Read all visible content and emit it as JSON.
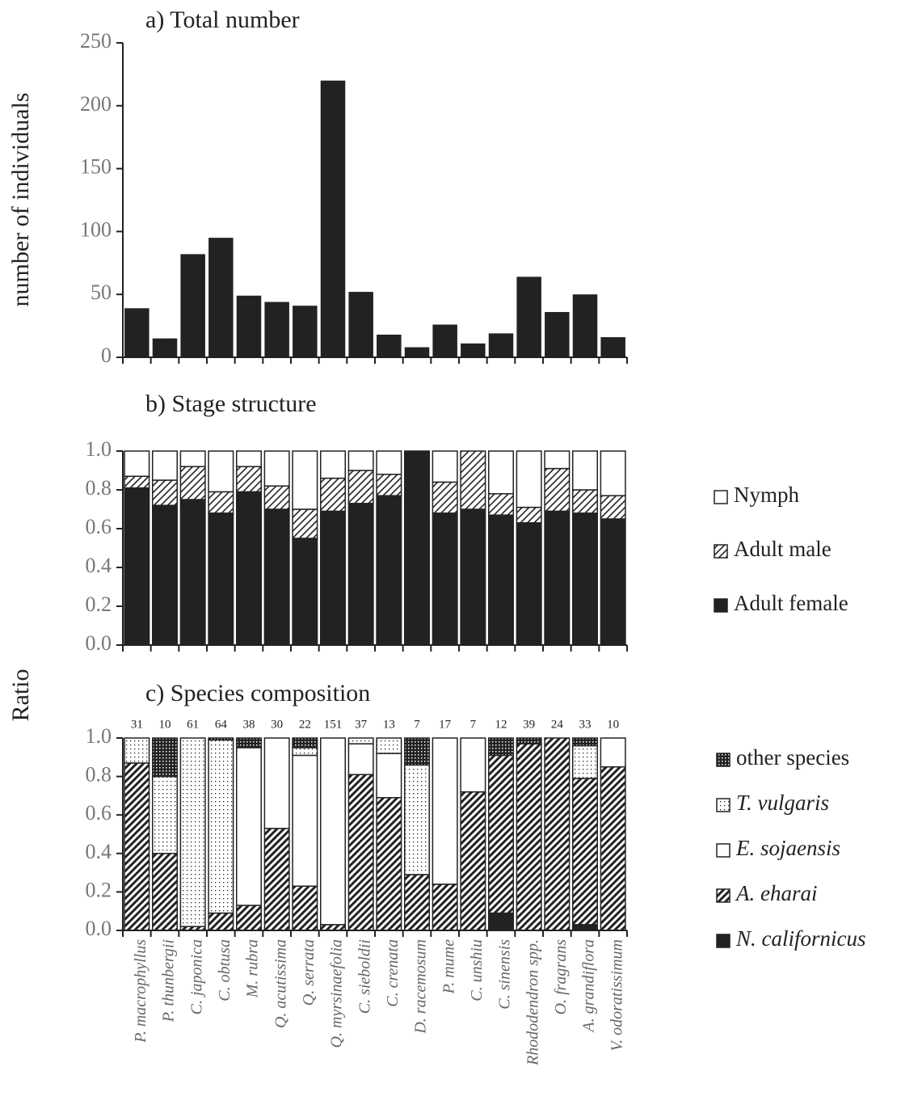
{
  "chart_data": [
    {
      "type": "bar",
      "title": "a) Total number",
      "ylabel": "number of individuals",
      "color": "#222222",
      "values": [
        39,
        15,
        82,
        95,
        49,
        44,
        41,
        220,
        52,
        18,
        8,
        26,
        11,
        19,
        64,
        36,
        50,
        16
      ],
      "ylim": [
        0,
        250
      ],
      "yticks": [
        0,
        50,
        100,
        150,
        200,
        250
      ]
    },
    {
      "type": "stacked_bar",
      "title": "b) Stage structure",
      "legend": "right",
      "series": [
        {
          "name": "Adult female",
          "color": "#222222",
          "pattern": "solid",
          "values": [
            0.81,
            0.72,
            0.75,
            0.68,
            0.79,
            0.7,
            0.55,
            0.69,
            0.73,
            0.77,
            1.0,
            0.68,
            0.7,
            0.67,
            0.63,
            0.69,
            0.68,
            0.65
          ]
        },
        {
          "name": "Adult male",
          "color": "#222222",
          "pattern": "hatch",
          "values": [
            0.06,
            0.13,
            0.17,
            0.11,
            0.13,
            0.12,
            0.15,
            0.17,
            0.17,
            0.11,
            0,
            0.16,
            0.3,
            0.11,
            0.08,
            0.22,
            0.12,
            0.12
          ]
        },
        {
          "name": "Nymph",
          "color": "#ffffff",
          "pattern": "none",
          "values": [
            0.13,
            0.15,
            0.08,
            0.21,
            0.08,
            0.18,
            0.3,
            0.14,
            0.1,
            0.12,
            0,
            0.16,
            0,
            0.22,
            0.29,
            0.09,
            0.2,
            0.23
          ]
        }
      ],
      "ylim": [
        0,
        1
      ],
      "yticks": [
        {
          "value": 0,
          "label": "0.0"
        },
        0.2,
        0.4,
        0.6,
        0.8,
        {
          "value": 1,
          "label": "1.0"
        }
      ]
    },
    {
      "type": "stacked_bar",
      "title": "c) Species composition",
      "ylabel": "Ratio",
      "legend": "right",
      "categories": [
        "P. macrophyllus",
        "P. thunbergii",
        "C. japonica",
        "C. obtusa",
        "M. rubra",
        "Q. acutissima",
        "Q. serrata",
        "Q. myrsinaefolia",
        "C. sieboldii",
        "C. crenata",
        "D. racemosum",
        "P. mume",
        "C. unshiu",
        "C. sinensis",
        "Rhododendron spp.",
        "O. fragrans",
        "A. grandiflora",
        "V. odoratissimum"
      ],
      "counts": [
        31,
        10,
        61,
        64,
        38,
        30,
        22,
        151,
        37,
        13,
        7,
        17,
        7,
        12,
        39,
        24,
        33,
        10
      ],
      "series": [
        {
          "name": "N. californicus",
          "color": "#222222",
          "pattern": "solid",
          "values": [
            0,
            0,
            0,
            0,
            0,
            0,
            0,
            0,
            0,
            0,
            0,
            0,
            0,
            0.09,
            0,
            0,
            0.03,
            0
          ]
        },
        {
          "name": "A. eharai",
          "color": "#222222",
          "pattern": "hatch",
          "values": [
            0.87,
            0.4,
            0.02,
            0.09,
            0.13,
            0.53,
            0.23,
            0.03,
            0.81,
            0.69,
            0.29,
            0.24,
            0.72,
            0.82,
            0.97,
            1.0,
            0.76,
            0.85
          ]
        },
        {
          "name": "E. sojaensis",
          "color": "#ffffff",
          "pattern": "none",
          "values": [
            0,
            0,
            0,
            0,
            0.82,
            0.47,
            0.68,
            0.97,
            0.16,
            0.23,
            0,
            0.76,
            0.28,
            0,
            0,
            0,
            0,
            0.15
          ]
        },
        {
          "name": "T. vulgaris",
          "color": "#222222",
          "pattern": "dots",
          "values": [
            0.13,
            0.4,
            0.98,
            0.9,
            0,
            0,
            0.04,
            0,
            0.03,
            0.08,
            0.57,
            0,
            0,
            0,
            0,
            0,
            0.17,
            0
          ]
        },
        {
          "name": "other species",
          "color": "#222222",
          "pattern": "grid",
          "values": [
            0,
            0.2,
            0,
            0.01,
            0.05,
            0,
            0.05,
            0,
            0,
            0,
            0.14,
            0,
            0,
            0.09,
            0.03,
            0,
            0.04,
            0
          ]
        }
      ],
      "ylim": [
        0,
        1
      ],
      "yticks": [
        {
          "value": 0,
          "label": "0.0"
        },
        0.2,
        0.4,
        0.6,
        0.8,
        {
          "value": 1,
          "label": "1.0"
        }
      ]
    }
  ]
}
